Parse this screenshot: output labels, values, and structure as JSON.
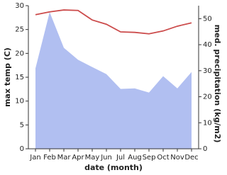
{
  "chart_data": {
    "type": "line-area",
    "x_label": "date (month)",
    "y_label": "max temp (C)",
    "y2_label": "med. precipitation (kg/m2)",
    "categories": [
      "Jan",
      "Feb",
      "Mar",
      "Apr",
      "May",
      "Jun",
      "Jul",
      "Aug",
      "Sep",
      "Oct",
      "Nov",
      "Dec"
    ],
    "ylim": [
      0,
      30
    ],
    "yticks": [
      0,
      5,
      10,
      15,
      20,
      25,
      30
    ],
    "y2lim": [
      0,
      55
    ],
    "y2ticks": [
      0,
      10,
      20,
      30,
      40,
      50
    ],
    "series": [
      {
        "name": "max temp",
        "color": "#cc4c4c",
        "values": [
          28.1,
          28.7,
          29.1,
          29.0,
          27.0,
          26.1,
          24.5,
          24.4,
          24.1,
          24.7,
          25.7,
          26.4
        ]
      },
      {
        "name": "med. precipitation",
        "color": "#b1bff1",
        "axis": "y2",
        "values": [
          30.9,
          52.5,
          38.8,
          34.2,
          31.4,
          28.7,
          23.0,
          23.2,
          21.6,
          27.9,
          23.2,
          29.5
        ]
      }
    ]
  }
}
